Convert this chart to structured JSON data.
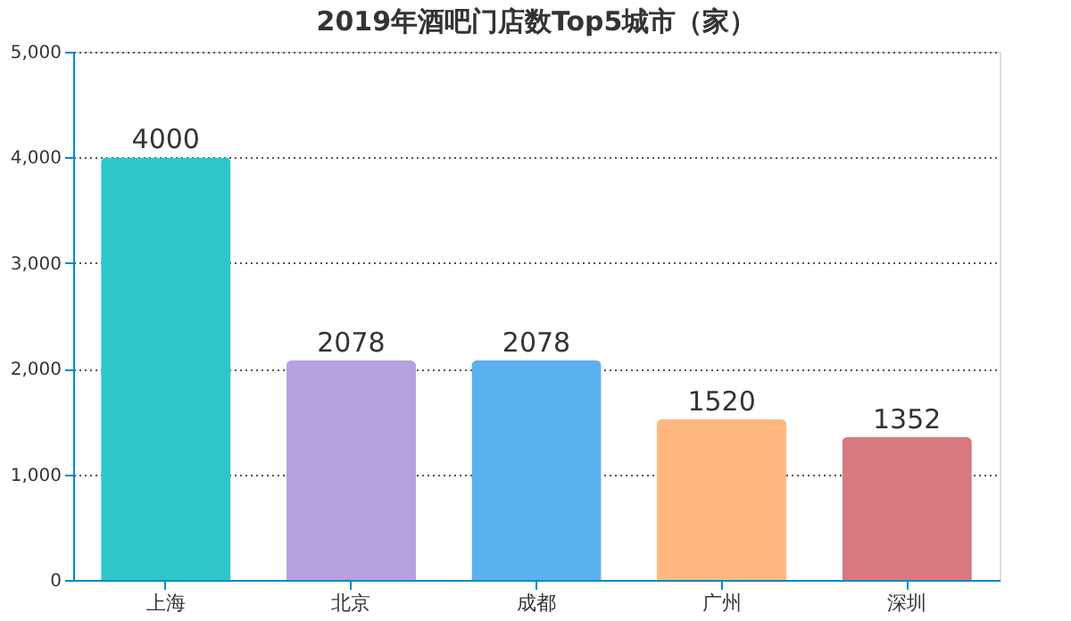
{
  "chart_data": {
    "type": "bar",
    "title": "2019年酒吧门店数Top5城市（家）",
    "categories": [
      "上海",
      "北京",
      "成都",
      "广州",
      "深圳"
    ],
    "values": [
      4000,
      2078,
      2078,
      1520,
      1352
    ],
    "colors": [
      "#2ec7c9",
      "#b6a2de",
      "#5ab1ef",
      "#ffb980",
      "#d87a80"
    ],
    "ylim": [
      0,
      5000
    ],
    "yticks": [
      0,
      {
        "value": 1000,
        "label": "1,000"
      },
      {
        "value": 2000,
        "label": "2,000"
      },
      {
        "value": 3000,
        "label": "3,000"
      },
      {
        "value": 4000,
        "label": "4,000"
      },
      {
        "value": 5000,
        "label": "5,000"
      }
    ],
    "grid": "y",
    "data_labels": true
  }
}
